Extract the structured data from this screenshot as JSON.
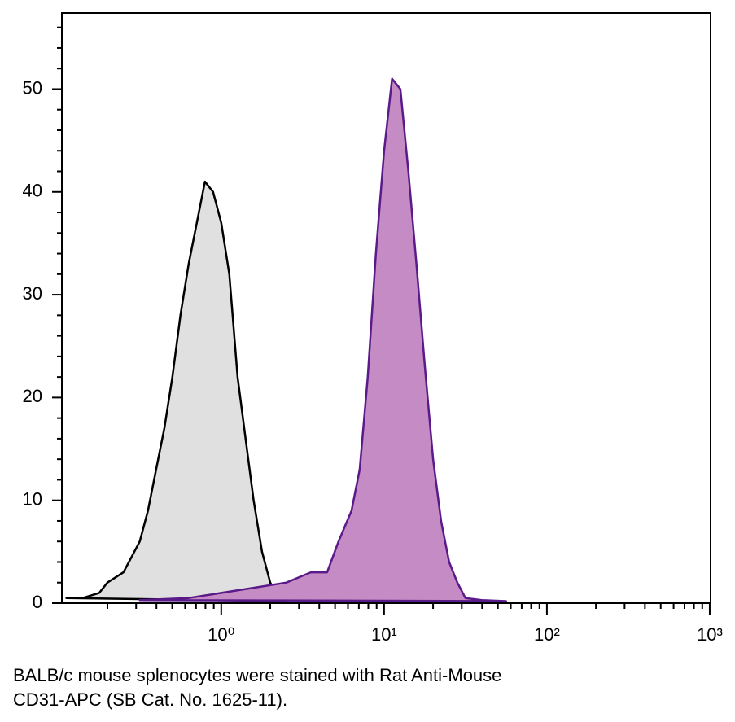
{
  "chart_data": {
    "type": "area",
    "xscale": "log",
    "xlim": [
      0.105,
      1012
    ],
    "ylim": [
      0,
      57.4
    ],
    "xticks": [
      {
        "value": 1,
        "label": "10⁰"
      },
      {
        "value": 10,
        "label": "10¹"
      },
      {
        "value": 100,
        "label": "10²"
      },
      {
        "value": 1000,
        "label": "10³"
      }
    ],
    "xminor_ticks": [
      0.2,
      0.3,
      0.4,
      0.5,
      0.6,
      0.7,
      0.8,
      0.9,
      2,
      3,
      4,
      5,
      6,
      7,
      8,
      9,
      20,
      30,
      40,
      50,
      60,
      70,
      80,
      90,
      200,
      300,
      400,
      500,
      600,
      700,
      800,
      900
    ],
    "yticks": [
      0,
      10,
      20,
      30,
      40,
      50
    ],
    "yminor_ticks": [
      2,
      4,
      6,
      8,
      12,
      14,
      16,
      18,
      22,
      24,
      26,
      28,
      32,
      34,
      36,
      38,
      42,
      44,
      46,
      48,
      52,
      54,
      56
    ],
    "series": [
      {
        "color": "#000000",
        "fill": "#e0e0e0",
        "x": [
          0.112,
          0.141,
          0.178,
          0.2,
          0.251,
          0.316,
          0.355,
          0.398,
          0.447,
          0.501,
          0.562,
          0.631,
          0.708,
          0.794,
          0.891,
          1,
          1.12,
          1.26,
          1.41,
          1.58,
          1.78,
          2.0,
          2.24,
          2.51
        ],
        "values": [
          0.5,
          0.5,
          1,
          2,
          3,
          6,
          9,
          13,
          17,
          22,
          28,
          33,
          37,
          41,
          40,
          37,
          32,
          22,
          16,
          10,
          5,
          2,
          0.5,
          0.2
        ]
      },
      {
        "color": "#5a1a8a",
        "fill": "#c48bc4",
        "x": [
          0.316,
          0.631,
          1,
          1.58,
          2.51,
          3.55,
          4.47,
          5.25,
          6.31,
          7.08,
          7.94,
          8.91,
          10,
          11.2,
          12.6,
          14.1,
          15.8,
          17.8,
          20,
          22.4,
          25.1,
          28.2,
          31.6,
          39.8,
          56.2
        ],
        "values": [
          0.3,
          0.5,
          1,
          1.5,
          2,
          3,
          3,
          6,
          9,
          13,
          22,
          34,
          44,
          51,
          50,
          42,
          33,
          23,
          14,
          8,
          4,
          2,
          0.5,
          0.3,
          0.2
        ]
      }
    ],
    "caption": [
      "BALB/c mouse splenocytes were stained with Rat Anti-Mouse",
      "CD31-APC (SB Cat. No. 1625-11)."
    ]
  }
}
